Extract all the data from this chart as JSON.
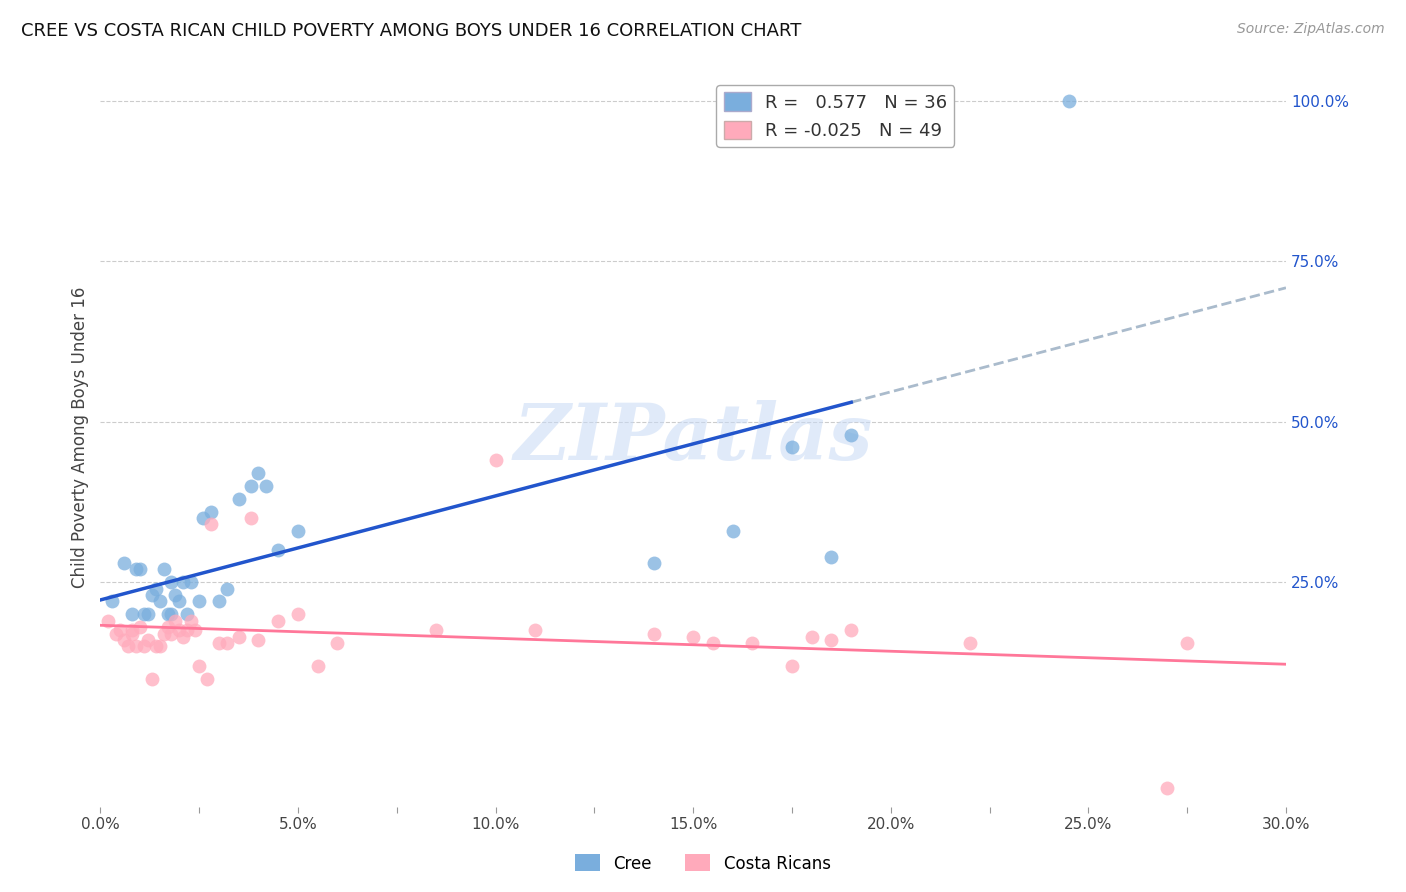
{
  "title": "CREE VS COSTA RICAN CHILD POVERTY AMONG BOYS UNDER 16 CORRELATION CHART",
  "source": "Source: ZipAtlas.com",
  "ylabel": "Child Poverty Among Boys Under 16",
  "xlim": [
    0.0,
    0.3
  ],
  "ylim": [
    -0.1,
    1.05
  ],
  "xtick_labels": [
    "0.0%",
    "",
    "5.0%",
    "",
    "10.0%",
    "",
    "15.0%",
    "",
    "20.0%",
    "",
    "25.0%",
    "",
    "30.0%"
  ],
  "xtick_vals": [
    0.0,
    0.025,
    0.05,
    0.075,
    0.1,
    0.125,
    0.15,
    0.175,
    0.2,
    0.225,
    0.25,
    0.275,
    0.3
  ],
  "ytick_right_labels": [
    "100.0%",
    "75.0%",
    "50.0%",
    "25.0%"
  ],
  "ytick_right_vals": [
    1.0,
    0.75,
    0.5,
    0.25
  ],
  "cree_color": "#7aaedd",
  "costa_color": "#ffaabb",
  "cree_line_color": "#2255cc",
  "costa_line_color": "#ff7799",
  "watermark_color": "#c8daf5",
  "cree_R": 0.577,
  "cree_N": 36,
  "costa_R": -0.025,
  "costa_N": 49,
  "watermark": "ZIPatlas",
  "cree_x": [
    0.003,
    0.006,
    0.008,
    0.009,
    0.01,
    0.011,
    0.012,
    0.013,
    0.014,
    0.015,
    0.016,
    0.017,
    0.018,
    0.018,
    0.019,
    0.02,
    0.021,
    0.022,
    0.023,
    0.025,
    0.026,
    0.028,
    0.03,
    0.032,
    0.035,
    0.038,
    0.04,
    0.042,
    0.045,
    0.05,
    0.14,
    0.16,
    0.175,
    0.185,
    0.19,
    0.245
  ],
  "cree_y": [
    0.22,
    0.28,
    0.2,
    0.27,
    0.27,
    0.2,
    0.2,
    0.23,
    0.24,
    0.22,
    0.27,
    0.2,
    0.2,
    0.25,
    0.23,
    0.22,
    0.25,
    0.2,
    0.25,
    0.22,
    0.35,
    0.36,
    0.22,
    0.24,
    0.38,
    0.4,
    0.42,
    0.4,
    0.3,
    0.33,
    0.28,
    0.33,
    0.46,
    0.29,
    0.48,
    1.0
  ],
  "costa_x": [
    0.002,
    0.004,
    0.005,
    0.006,
    0.007,
    0.008,
    0.008,
    0.009,
    0.01,
    0.011,
    0.012,
    0.013,
    0.014,
    0.015,
    0.016,
    0.017,
    0.018,
    0.019,
    0.02,
    0.021,
    0.022,
    0.023,
    0.024,
    0.025,
    0.027,
    0.028,
    0.03,
    0.032,
    0.035,
    0.038,
    0.04,
    0.045,
    0.05,
    0.055,
    0.06,
    0.085,
    0.1,
    0.11,
    0.14,
    0.15,
    0.155,
    0.165,
    0.175,
    0.18,
    0.185,
    0.19,
    0.22,
    0.27,
    0.275
  ],
  "costa_y": [
    0.19,
    0.17,
    0.175,
    0.16,
    0.15,
    0.175,
    0.17,
    0.15,
    0.18,
    0.15,
    0.16,
    0.1,
    0.15,
    0.15,
    0.17,
    0.18,
    0.17,
    0.19,
    0.175,
    0.165,
    0.175,
    0.19,
    0.175,
    0.12,
    0.1,
    0.34,
    0.155,
    0.155,
    0.165,
    0.35,
    0.16,
    0.19,
    0.2,
    0.12,
    0.155,
    0.175,
    0.44,
    0.175,
    0.17,
    0.165,
    0.155,
    0.155,
    0.12,
    0.165,
    0.16,
    0.175,
    0.155,
    -0.07,
    0.155
  ]
}
